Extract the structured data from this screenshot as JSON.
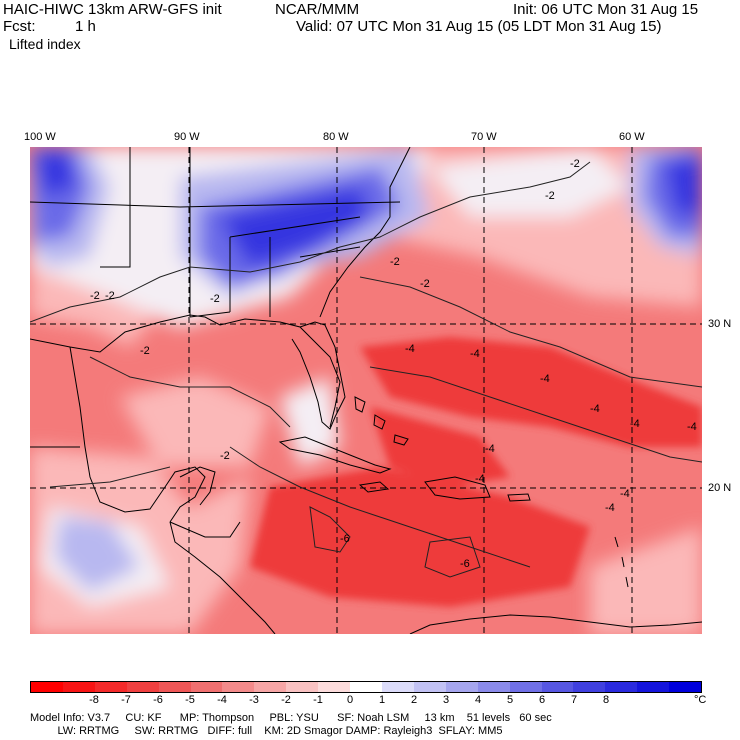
{
  "header": {
    "model": "HAIC-HIWC 13km ARW-GFS init",
    "org": "NCAR/MMM",
    "init": "Init: 06 UTC Mon 31 Aug 15",
    "fcst_label": "Fcst:",
    "fcst_value": "1 h",
    "valid": "Valid: 07 UTC Mon 31 Aug 15 (05 LDT Mon 31 Aug 15)",
    "field": "Lifted index"
  },
  "map": {
    "lon_labels": [
      "100 W",
      "90 W",
      "80 W",
      "70 W",
      "60 W"
    ],
    "lat_labels": [
      "30 N",
      "20 N"
    ],
    "contour_labels": [
      "-2",
      "-2",
      "-2",
      "-2",
      "-2",
      "-2",
      "-2",
      "-2",
      "-4",
      "-4",
      "-4",
      "-4",
      "-4",
      "-4",
      "-4",
      "-4",
      "-4",
      "-6",
      "-6",
      "-2",
      "-4"
    ],
    "colors": {
      "strong_negative": "#ee3b3b",
      "negative": "#f47a7a",
      "weak_negative": "#fbb8b8",
      "neutral": "#f4eef4",
      "weak_positive": "#b8b8f0",
      "positive": "#6a6ae8",
      "strong_positive": "#3535e0"
    }
  },
  "colorbar": {
    "colors": [
      "#ff0000",
      "#f81414",
      "#f42a2a",
      "#f04040",
      "#ef5757",
      "#f07070",
      "#f38b8b",
      "#f6a6a6",
      "#f9c2c2",
      "#fcdcdc",
      "#ffffff",
      "#dcdcfa",
      "#c2c2f4",
      "#a6a6ee",
      "#8b8bea",
      "#7070e6",
      "#5757e2",
      "#4040df",
      "#2a2ade",
      "#1414dc",
      "#0000dc"
    ],
    "labels": [
      "-8",
      "-7",
      "-6",
      "-5",
      "-4",
      "-3",
      "-2",
      "-1",
      "0",
      "1",
      "2",
      "3",
      "4",
      "5",
      "6",
      "7",
      "8"
    ],
    "unit": "°C"
  },
  "footer": {
    "line1": "Model Info: V3.7     CU: KF      MP: Thompson     PBL: YSU      SF: Noah LSM     13 km    51 levels   60 sec",
    "line2": "         LW: RRTMG     SW: RRTMG   DIFF: full    KM: 2D Smagor DAMP: Rayleigh3  SFLAY: MM5"
  }
}
